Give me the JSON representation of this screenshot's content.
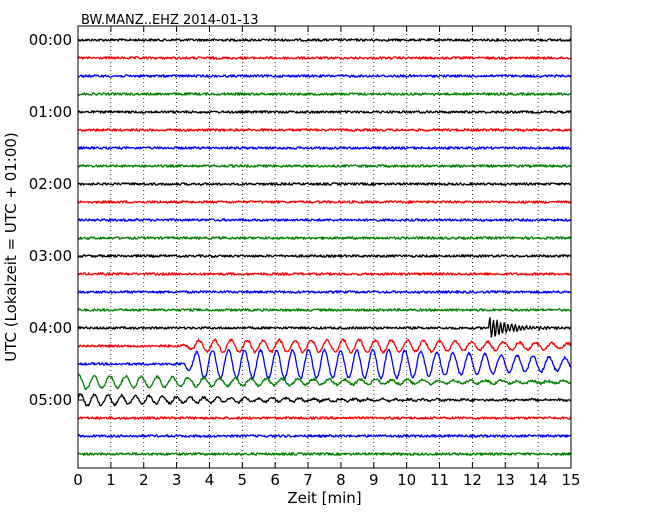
{
  "chart_data": {
    "type": "line",
    "title": "BW.MANZ..EHZ 2014-01-13",
    "xlabel": "Zeit  [min]",
    "ylabel": "UTC (Lokalzeit = UTC + 01:00)",
    "xlim": [
      0,
      15
    ],
    "xticks": [
      "0",
      "1",
      "2",
      "3",
      "4",
      "5",
      "6",
      "7",
      "8",
      "9",
      "10",
      "11",
      "12",
      "13",
      "14",
      "15"
    ],
    "yticks": [
      "00:00",
      "01:00",
      "02:00",
      "03:00",
      "04:00",
      "05:00"
    ],
    "grid": "vertical dotted",
    "trace_colors": [
      "#000000",
      "#ff0000",
      "#0000ff",
      "#008000"
    ],
    "trace_count": 24,
    "trace_interval_minutes": 15,
    "events": [
      {
        "trace_start": "04:00",
        "onset_min": 12.5,
        "description": "sharp local event, decaying coda"
      },
      {
        "trace_start": "04:15",
        "onset_min": 3.5,
        "description": "large long-period oscillations (teleseismic surface waves)"
      },
      {
        "trace_start": "04:30",
        "onset_min": 3.5,
        "description": "large long-period oscillations (teleseismic surface waves)"
      },
      {
        "trace_start": "04:45",
        "onset_min": 0,
        "description": "oscillation coda continuing"
      },
      {
        "trace_start": "05:00",
        "onset_min": 0,
        "description": "oscillation coda continuing"
      }
    ]
  }
}
